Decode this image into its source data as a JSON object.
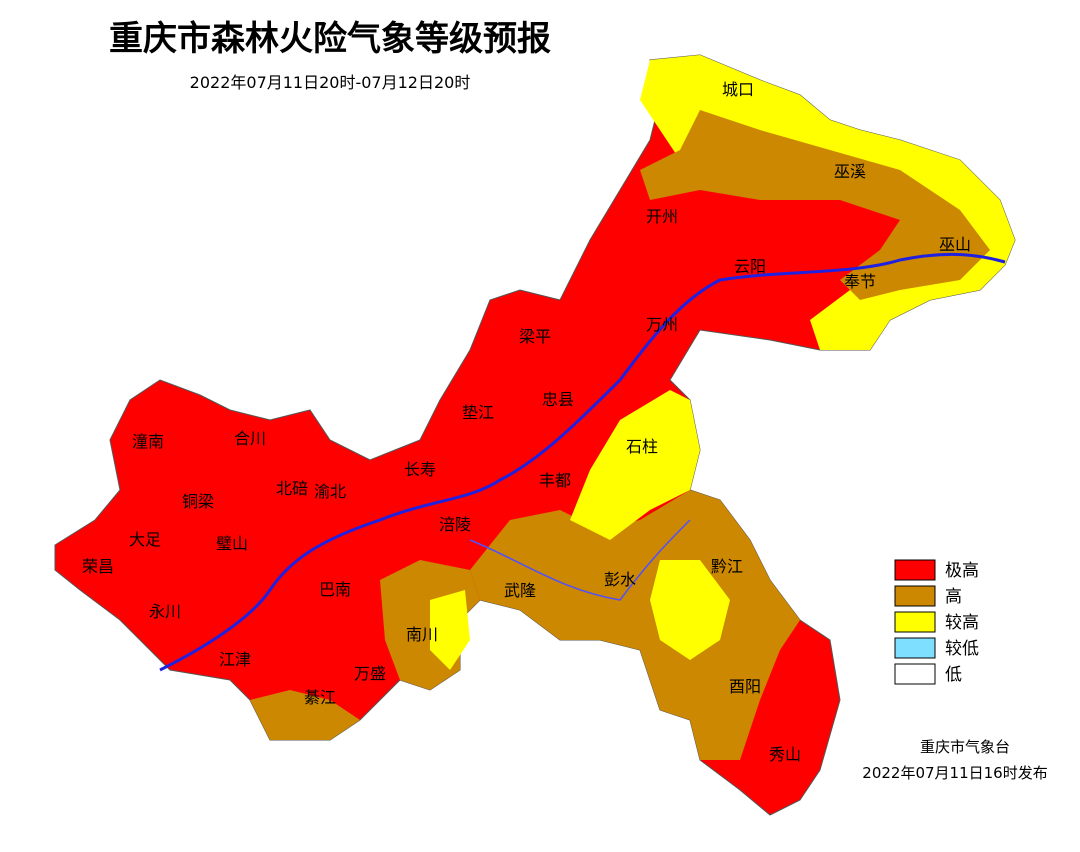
{
  "header": {
    "title": "重庆市森林火险气象等级预报",
    "subtitle": "2022年07月11日20时-07月12日20时"
  },
  "legend": [
    {
      "label": "极高",
      "color": "#ff0000"
    },
    {
      "label": "高",
      "color": "#cc8800"
    },
    {
      "label": "较高",
      "color": "#ffff00"
    },
    {
      "label": "较低",
      "color": "#7fdfff"
    },
    {
      "label": "低",
      "color": "#ffffff"
    }
  ],
  "districts": [
    {
      "name": "城口"
    },
    {
      "name": "巫溪"
    },
    {
      "name": "开州"
    },
    {
      "name": "云阳"
    },
    {
      "name": "巫山"
    },
    {
      "name": "奉节"
    },
    {
      "name": "万州"
    },
    {
      "name": "梁平"
    },
    {
      "name": "忠县"
    },
    {
      "name": "垫江"
    },
    {
      "name": "石柱"
    },
    {
      "name": "长寿"
    },
    {
      "name": "丰都"
    },
    {
      "name": "潼南"
    },
    {
      "name": "合川"
    },
    {
      "name": "铜梁"
    },
    {
      "name": "北碚"
    },
    {
      "name": "渝北"
    },
    {
      "name": "大足"
    },
    {
      "name": "璧山"
    },
    {
      "name": "涪陵"
    },
    {
      "name": "荣昌"
    },
    {
      "name": "永川"
    },
    {
      "name": "巴南"
    },
    {
      "name": "武隆"
    },
    {
      "name": "彭水"
    },
    {
      "name": "黔江"
    },
    {
      "name": "南川"
    },
    {
      "name": "江津"
    },
    {
      "name": "万盛"
    },
    {
      "name": "綦江"
    },
    {
      "name": "酉阳"
    },
    {
      "name": "秀山"
    }
  ],
  "footer": {
    "issuer": "重庆市气象台",
    "issued": "2022年07月11日16时发布"
  }
}
